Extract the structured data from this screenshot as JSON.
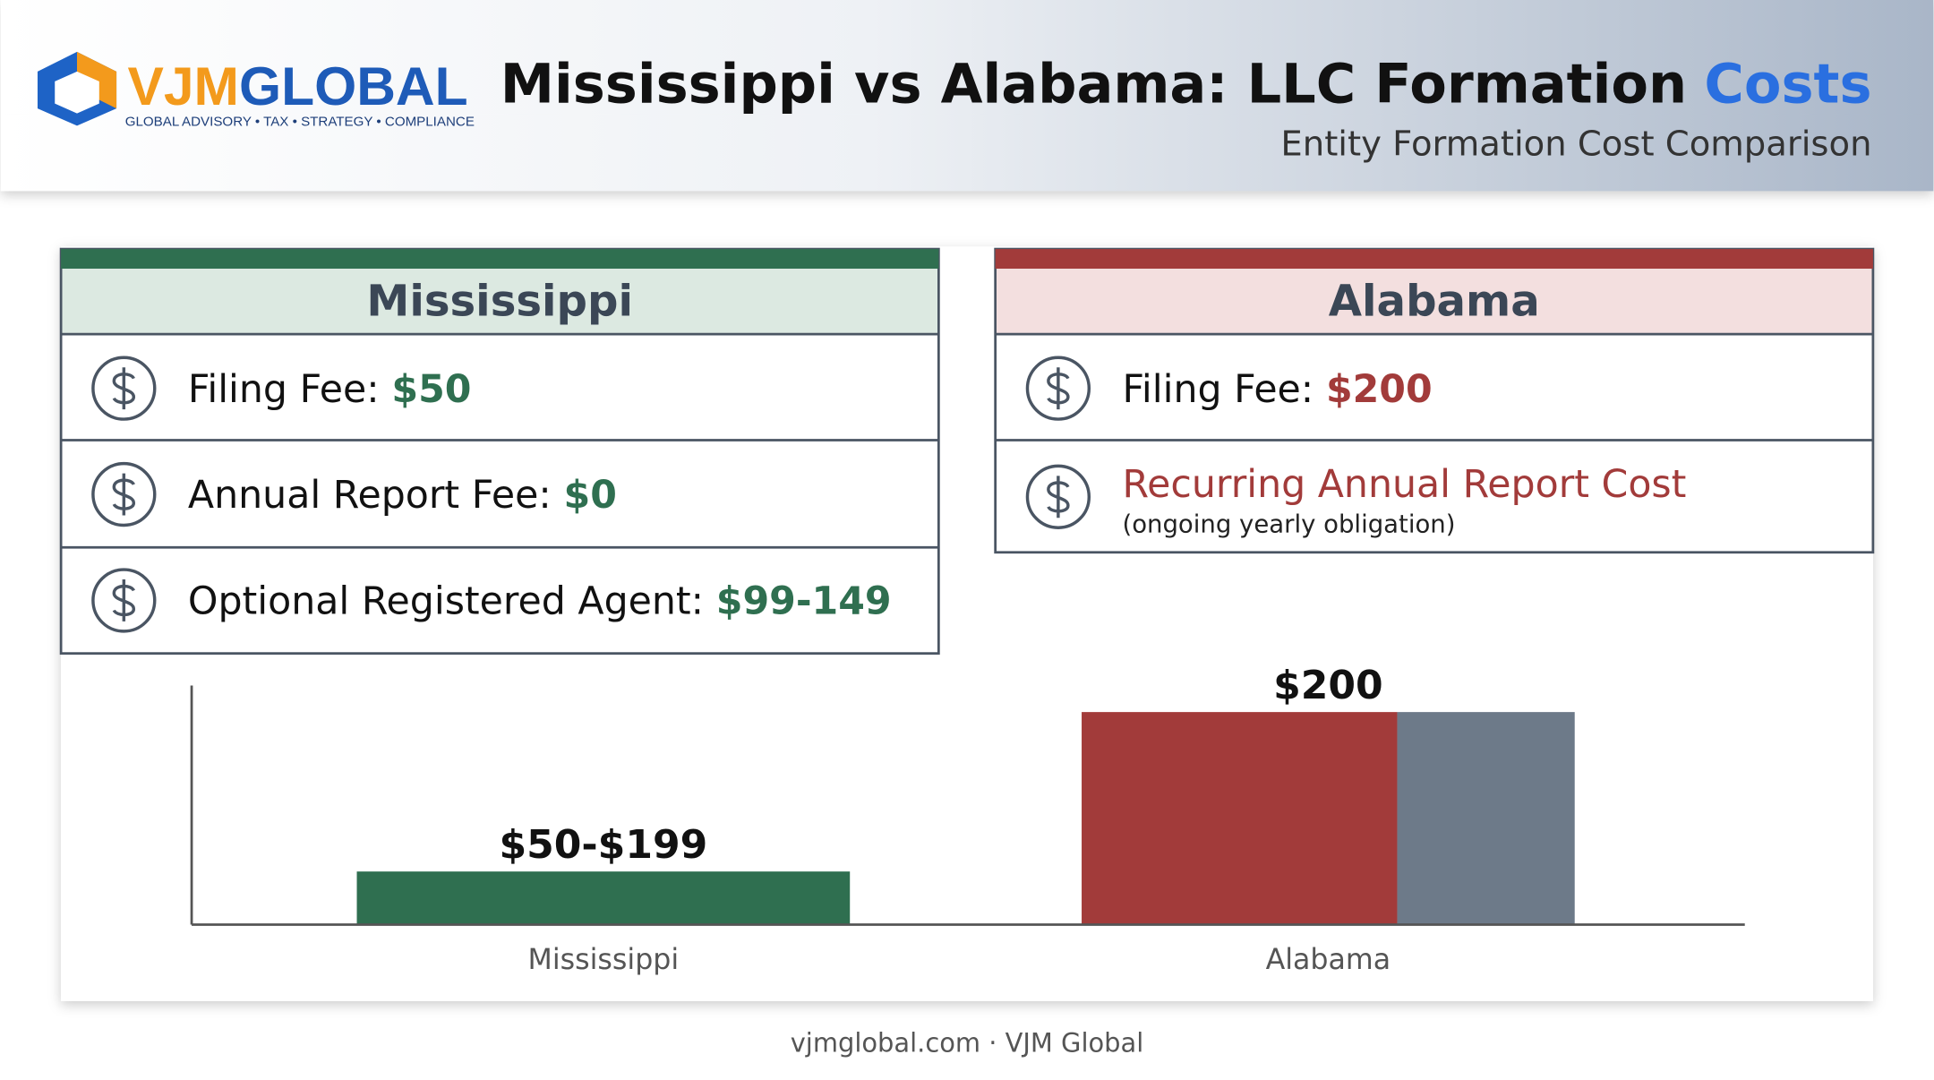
{
  "header": {
    "logo_name_a": "VJM",
    "logo_name_b": "GLOBAL",
    "logo_tagline": "GLOBAL ADVISORY • TAX • STRATEGY • COMPLIANCE",
    "title": "Mississippi vs Alabama: LLC Formation",
    "title_highlight": "Costs",
    "subtitle": "Entity Formation Cost Comparison"
  },
  "cards": [
    {
      "title": "Mississippi",
      "rows": [
        {
          "label": "Filing Fee:",
          "value": "$50"
        },
        {
          "label": "Annual Report Fee:",
          "value": "$0"
        },
        {
          "label": "Optional Registered Agent:",
          "value": "$99-149"
        }
      ]
    },
    {
      "title": "Alabama",
      "rows": [
        {
          "label": "Filing Fee:",
          "value": "$200"
        },
        {
          "label": "Recurring Annual Report Cost",
          "note": "(ongoing yearly obligation)"
        }
      ]
    }
  ],
  "chart_data": {
    "type": "bar",
    "categories": [
      "Mississippi",
      "Alabama"
    ],
    "ylim": [
      0,
      225
    ],
    "series": [
      {
        "colors": [
          "#2f6f50",
          "#a23b3a"
        ],
        "values": [
          50,
          200
        ],
        "value_labels": [
          "$50-$199",
          "$200"
        ]
      },
      {
        "color": "#6d7a89",
        "values": [
          null,
          200
        ]
      }
    ]
  },
  "footer": "vjmglobal.com · VJM Global"
}
